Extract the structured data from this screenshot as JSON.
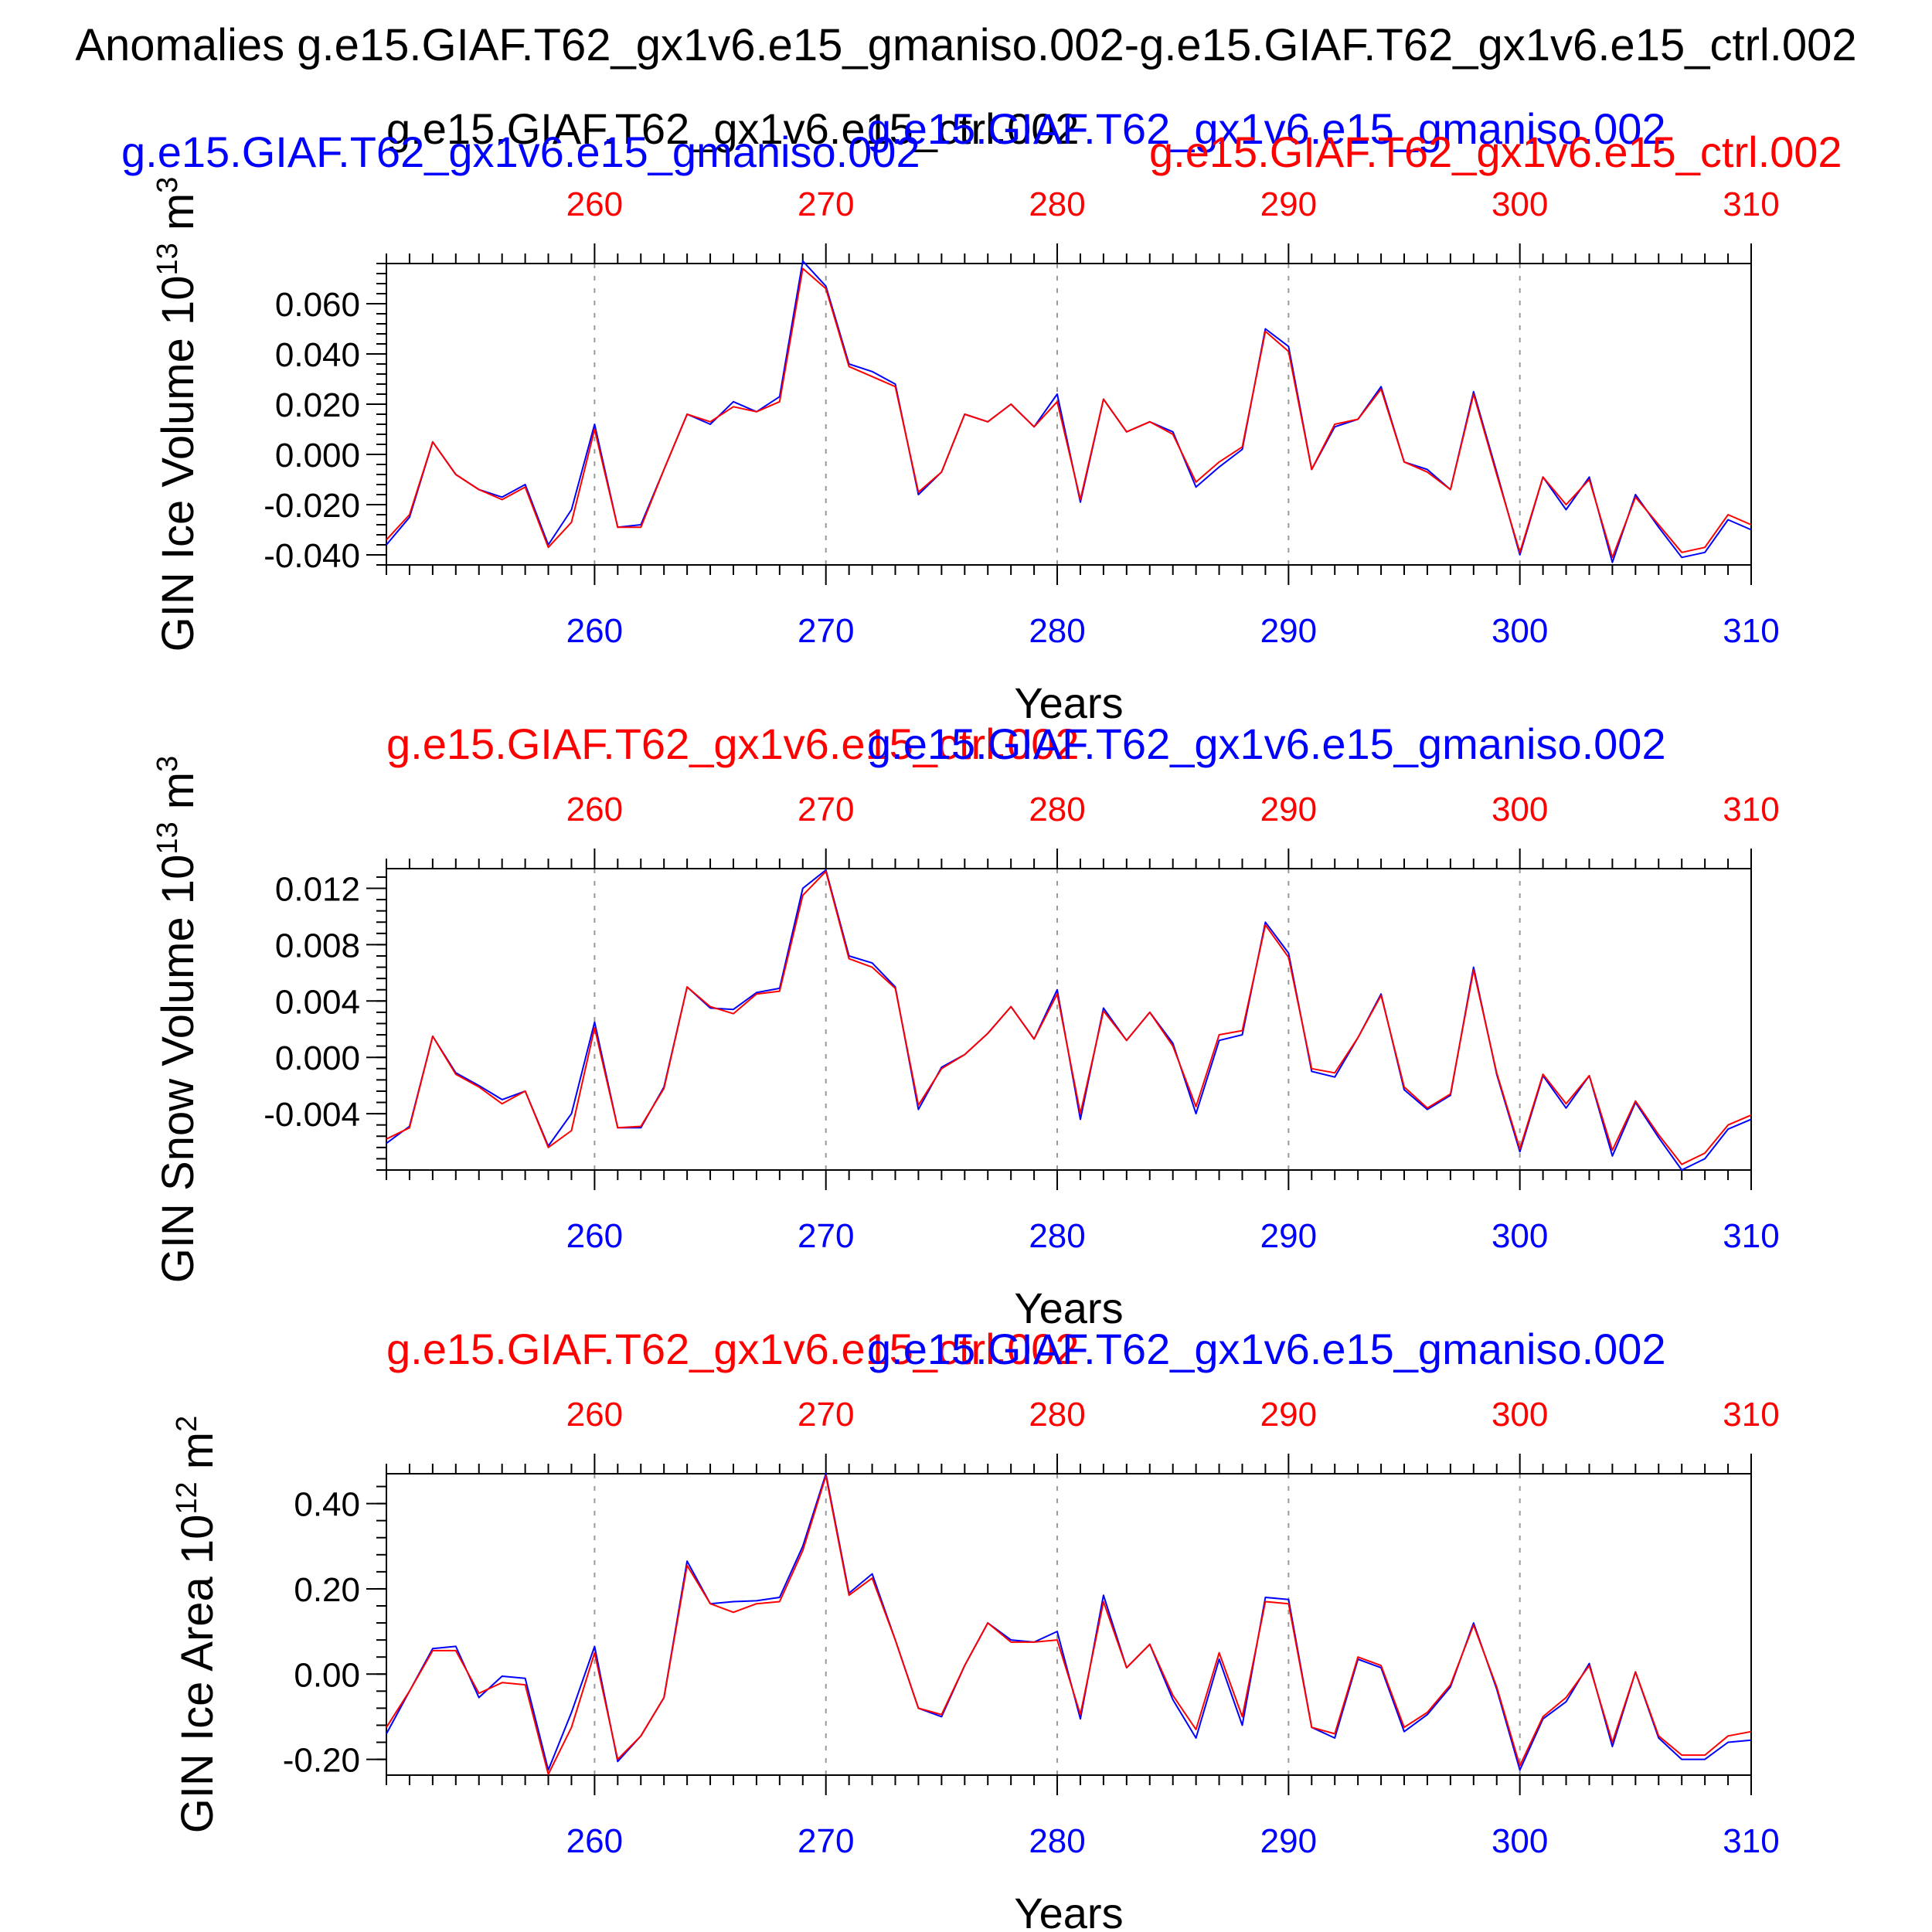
{
  "figure": {
    "main_title": "Anomalies g.e15.GIAF.T62_gx1v6.e15_gmaniso.002-g.e15.GIAF.T62_gx1v6.e15_ctrl.002"
  },
  "colors": {
    "series_blue": "#0000ff",
    "series_red": "#ff0000",
    "axes": "#000000",
    "vgrid": "#999999"
  },
  "chart_data": [
    {
      "type": "line",
      "title_left": "g.e15.GIAF.T62_gx1v6.e15_gmaniso.002",
      "title_left_color": "#0000ff",
      "title_center_red": "g.e15.GIAF.T62_gx1v6.e15_ctrl.002",
      "title_center_blue": "g.e15.GIAF.T62_gx1v6.e15_gmaniso.002",
      "title_right": "g.e15.GIAF.T62_gx1v6.e15_ctrl.002",
      "title_right_color": "#ff0000",
      "ylabel": "GIN Ice Volume 10",
      "ylabel_exp": "13",
      "ylabel_unit": " m",
      "ylabel_unit_exp": "3",
      "xlabel": "Years",
      "xlim": [
        251,
        310
      ],
      "ylim": [
        -0.044,
        0.076
      ],
      "xticks": [
        260,
        270,
        280,
        290,
        300,
        310
      ],
      "yticks": [
        -0.04,
        -0.02,
        0.0,
        0.02,
        0.04,
        0.06
      ],
      "yticklabels": [
        "-0.040",
        "-0.020",
        "0.000",
        "0.020",
        "0.040",
        "0.060"
      ],
      "grid_x": [
        260,
        270,
        280,
        290,
        300
      ],
      "x": [
        251,
        252,
        253,
        254,
        255,
        256,
        257,
        258,
        259,
        260,
        261,
        262,
        263,
        264,
        265,
        266,
        267,
        268,
        269,
        270,
        271,
        272,
        273,
        274,
        275,
        276,
        277,
        278,
        279,
        280,
        281,
        282,
        283,
        284,
        285,
        286,
        287,
        288,
        289,
        290,
        291,
        292,
        293,
        294,
        295,
        296,
        297,
        298,
        299,
        300,
        301,
        302,
        303,
        304,
        305,
        306,
        307,
        308,
        309,
        310
      ],
      "series": [
        {
          "name": "g.e15.GIAF.T62_gx1v6.e15_gmaniso.002",
          "color": "#0000ff",
          "values": [
            -0.036,
            -0.025,
            0.005,
            -0.008,
            -0.014,
            -0.017,
            -0.012,
            -0.036,
            -0.022,
            0.012,
            -0.029,
            -0.028,
            -0.006,
            0.016,
            0.012,
            0.021,
            0.017,
            0.023,
            0.077,
            0.067,
            0.036,
            0.033,
            0.028,
            -0.016,
            -0.007,
            0.016,
            0.013,
            0.02,
            0.011,
            0.024,
            -0.019,
            0.022,
            0.009,
            0.013,
            0.009,
            -0.013,
            -0.005,
            0.002,
            0.05,
            0.043,
            -0.006,
            0.011,
            0.014,
            0.027,
            -0.003,
            -0.006,
            -0.014,
            0.025,
            -0.007,
            -0.04,
            -0.009,
            -0.022,
            -0.009,
            -0.043,
            -0.016,
            -0.029,
            -0.041,
            -0.039,
            -0.026,
            -0.03
          ]
        },
        {
          "name": "g.e15.GIAF.T62_gx1v6.e15_ctrl.002",
          "color": "#ff0000",
          "values": [
            -0.034,
            -0.024,
            0.005,
            -0.008,
            -0.014,
            -0.018,
            -0.013,
            -0.037,
            -0.027,
            0.01,
            -0.029,
            -0.029,
            -0.006,
            0.016,
            0.013,
            0.019,
            0.017,
            0.021,
            0.074,
            0.066,
            0.035,
            0.031,
            0.027,
            -0.015,
            -0.007,
            0.016,
            0.013,
            0.02,
            0.011,
            0.021,
            -0.018,
            0.022,
            0.009,
            0.013,
            0.008,
            -0.011,
            -0.003,
            0.003,
            0.049,
            0.041,
            -0.006,
            0.012,
            0.014,
            0.026,
            -0.003,
            -0.007,
            -0.014,
            0.024,
            -0.008,
            -0.039,
            -0.009,
            -0.02,
            -0.01,
            -0.041,
            -0.017,
            -0.028,
            -0.039,
            -0.037,
            -0.024,
            -0.028
          ]
        }
      ]
    },
    {
      "type": "line",
      "title_left": "g.e15.GIAF.T62_gx1v6.e15_ctrl.002",
      "title_left_color": "#ff0000",
      "title_right": "g.e15.GIAF.T62_gx1v6.e15_gmaniso.002",
      "title_right_color": "#0000ff",
      "ylabel": "GIN Snow Volume 10",
      "ylabel_exp": "13",
      "ylabel_unit": " m",
      "ylabel_unit_exp": "3",
      "xlabel": "Years",
      "xlim": [
        251,
        310
      ],
      "ylim": [
        -0.008,
        0.0134
      ],
      "xticks": [
        260,
        270,
        280,
        290,
        300,
        310
      ],
      "yticks": [
        -0.004,
        0.0,
        0.004,
        0.008,
        0.012
      ],
      "yticklabels": [
        "-0.004",
        "0.000",
        "0.004",
        "0.008",
        "0.012"
      ],
      "grid_x": [
        260,
        270,
        280,
        290,
        300
      ],
      "x": [
        251,
        252,
        253,
        254,
        255,
        256,
        257,
        258,
        259,
        260,
        261,
        262,
        263,
        264,
        265,
        266,
        267,
        268,
        269,
        270,
        271,
        272,
        273,
        274,
        275,
        276,
        277,
        278,
        279,
        280,
        281,
        282,
        283,
        284,
        285,
        286,
        287,
        288,
        289,
        290,
        291,
        292,
        293,
        294,
        295,
        296,
        297,
        298,
        299,
        300,
        301,
        302,
        303,
        304,
        305,
        306,
        307,
        308,
        309,
        310
      ],
      "series": [
        {
          "name": "g.e15.GIAF.T62_gx1v6.e15_gmaniso.002",
          "color": "#0000ff",
          "values": [
            -0.0061,
            -0.0049,
            0.0015,
            -0.0011,
            -0.002,
            -0.003,
            -0.0024,
            -0.0063,
            -0.004,
            0.0025,
            -0.005,
            -0.005,
            -0.0021,
            0.005,
            0.0035,
            0.0034,
            0.0046,
            0.0049,
            0.012,
            0.0133,
            0.0072,
            0.0067,
            0.005,
            -0.0037,
            -0.0007,
            0.0002,
            0.0017,
            0.0036,
            0.0013,
            0.0048,
            -0.0044,
            0.0035,
            0.0012,
            0.0032,
            0.001,
            -0.004,
            0.0012,
            0.0016,
            0.0096,
            0.0074,
            -0.001,
            -0.0014,
            0.0014,
            0.0045,
            -0.0023,
            -0.0037,
            -0.0027,
            0.0064,
            -0.0012,
            -0.0067,
            -0.0013,
            -0.0036,
            -0.0013,
            -0.007,
            -0.0032,
            -0.0057,
            -0.008,
            -0.0072,
            -0.0051,
            -0.0044
          ]
        },
        {
          "name": "g.e15.GIAF.T62_gx1v6.e15_ctrl.002",
          "color": "#ff0000",
          "values": [
            -0.0058,
            -0.005,
            0.0015,
            -0.0012,
            -0.0021,
            -0.0033,
            -0.0024,
            -0.0064,
            -0.0052,
            0.0021,
            -0.005,
            -0.0049,
            -0.0022,
            0.005,
            0.0036,
            0.0031,
            0.0045,
            0.0047,
            0.0115,
            0.0132,
            0.007,
            0.0064,
            0.0049,
            -0.0034,
            -0.0008,
            0.0002,
            0.0017,
            0.0036,
            0.0013,
            0.0045,
            -0.004,
            0.0033,
            0.0012,
            0.0032,
            0.0008,
            -0.0035,
            0.0016,
            0.0019,
            0.0094,
            0.0071,
            -0.0008,
            -0.0011,
            0.0014,
            0.0044,
            -0.0021,
            -0.0036,
            -0.0026,
            0.0062,
            -0.0011,
            -0.0065,
            -0.0012,
            -0.0033,
            -0.0013,
            -0.0066,
            -0.0031,
            -0.0055,
            -0.0076,
            -0.0068,
            -0.0048,
            -0.0041
          ]
        }
      ]
    },
    {
      "type": "line",
      "title_left": "g.e15.GIAF.T62_gx1v6.e15_ctrl.002",
      "title_left_color": "#ff0000",
      "title_right": "g.e15.GIAF.T62_gx1v6.e15_gmaniso.002",
      "title_right_color": "#0000ff",
      "ylabel": "GIN Ice Area 10",
      "ylabel_exp": "12",
      "ylabel_unit": " m",
      "ylabel_unit_exp": "2",
      "xlabel": "Years",
      "xlim": [
        251,
        310
      ],
      "ylim": [
        -0.237,
        0.47
      ],
      "xticks": [
        260,
        270,
        280,
        290,
        300,
        310
      ],
      "yticks": [
        -0.2,
        0.0,
        0.2,
        0.4
      ],
      "yticklabels": [
        "-0.20",
        "0.00",
        "0.20",
        "0.40"
      ],
      "grid_x": [
        260,
        270,
        280,
        290,
        300
      ],
      "x": [
        251,
        252,
        253,
        254,
        255,
        256,
        257,
        258,
        259,
        260,
        261,
        262,
        263,
        264,
        265,
        266,
        267,
        268,
        269,
        270,
        271,
        272,
        273,
        274,
        275,
        276,
        277,
        278,
        279,
        280,
        281,
        282,
        283,
        284,
        285,
        286,
        287,
        288,
        289,
        290,
        291,
        292,
        293,
        294,
        295,
        296,
        297,
        298,
        299,
        300,
        301,
        302,
        303,
        304,
        305,
        306,
        307,
        308,
        309,
        310
      ],
      "series": [
        {
          "name": "g.e15.GIAF.T62_gx1v6.e15_gmaniso.002",
          "color": "#0000ff",
          "values": [
            -0.14,
            -0.04,
            0.06,
            0.065,
            -0.055,
            -0.005,
            -0.01,
            -0.225,
            -0.09,
            0.065,
            -0.205,
            -0.145,
            -0.055,
            0.265,
            0.165,
            0.17,
            0.172,
            0.18,
            0.3,
            0.47,
            0.19,
            0.235,
            0.08,
            -0.08,
            -0.1,
            0.02,
            0.12,
            0.08,
            0.075,
            0.1,
            -0.105,
            0.185,
            0.015,
            0.07,
            -0.06,
            -0.15,
            0.035,
            -0.12,
            0.18,
            0.175,
            -0.125,
            -0.15,
            0.035,
            0.015,
            -0.135,
            -0.095,
            -0.03,
            0.12,
            -0.035,
            -0.225,
            -0.105,
            -0.065,
            0.025,
            -0.17,
            0.005,
            -0.15,
            -0.2,
            -0.2,
            -0.16,
            -0.155
          ]
        },
        {
          "name": "g.e15.GIAF.T62_gx1v6.e15_ctrl.002",
          "color": "#ff0000",
          "values": [
            -0.125,
            -0.04,
            0.055,
            0.055,
            -0.045,
            -0.02,
            -0.025,
            -0.235,
            -0.125,
            0.05,
            -0.2,
            -0.145,
            -0.055,
            0.255,
            0.165,
            0.145,
            0.165,
            0.17,
            0.29,
            0.465,
            0.185,
            0.225,
            0.08,
            -0.08,
            -0.095,
            0.02,
            0.12,
            0.075,
            0.075,
            0.08,
            -0.095,
            0.17,
            0.015,
            0.07,
            -0.05,
            -0.13,
            0.05,
            -0.1,
            0.17,
            0.165,
            -0.125,
            -0.14,
            0.04,
            0.02,
            -0.125,
            -0.09,
            -0.025,
            0.115,
            -0.03,
            -0.215,
            -0.1,
            -0.055,
            0.02,
            -0.16,
            0.005,
            -0.145,
            -0.19,
            -0.19,
            -0.145,
            -0.135
          ]
        }
      ]
    }
  ]
}
